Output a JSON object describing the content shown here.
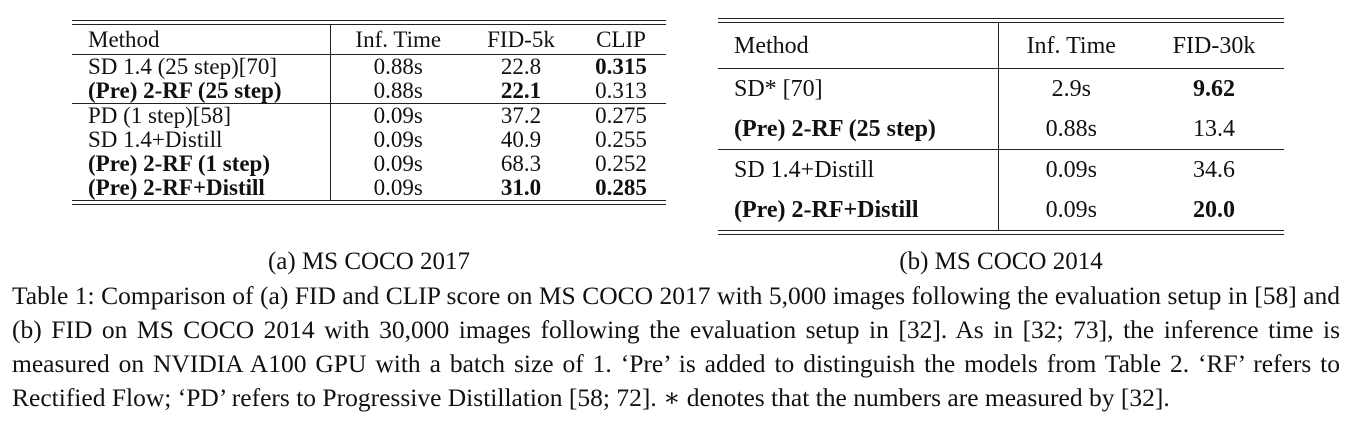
{
  "table_a": {
    "headers": [
      "Method",
      "Inf. Time",
      "FID-5k",
      "CLIP"
    ],
    "rows": [
      {
        "method": "SD 1.4 (25 step)[70]",
        "time": "0.88s",
        "fid": "22.8",
        "clip": "0.315"
      },
      {
        "method": "(Pre) 2-RF (25 step)",
        "time": "0.88s",
        "fid": "22.1",
        "clip": "0.313"
      },
      {
        "method": "PD (1 step)[58]",
        "time": "0.09s",
        "fid": "37.2",
        "clip": "0.275"
      },
      {
        "method": "SD 1.4+Distill",
        "time": "0.09s",
        "fid": "40.9",
        "clip": "0.255"
      },
      {
        "method": "(Pre) 2-RF (1 step)",
        "time": "0.09s",
        "fid": "68.3",
        "clip": "0.252"
      },
      {
        "method": "(Pre) 2-RF+Distill",
        "time": "0.09s",
        "fid": "31.0",
        "clip": "0.285"
      }
    ],
    "caption": "(a) MS COCO 2017"
  },
  "table_b": {
    "headers": [
      "Method",
      "Inf. Time",
      "FID-30k"
    ],
    "rows": [
      {
        "method": "SD* [70]",
        "time": "2.9s",
        "fid": "9.62"
      },
      {
        "method": "(Pre) 2-RF (25 step)",
        "time": "0.88s",
        "fid": "13.4"
      },
      {
        "method": "SD 1.4+Distill",
        "time": "0.09s",
        "fid": "34.6"
      },
      {
        "method": "(Pre) 2-RF+Distill",
        "time": "0.09s",
        "fid": "20.0"
      }
    ],
    "caption": "(b) MS COCO 2014"
  },
  "main_caption": "Table 1: Comparison of (a) FID and CLIP score on MS COCO 2017 with 5,000 images following the evaluation setup in [58] and (b) FID on MS COCO 2014 with 30,000 images following the evaluation setup in [32]. As in [32; 73], the inference time is measured on NVIDIA A100 GPU with a batch size of 1. ‘Pre’ is added to distinguish the models from Table 2. ‘RF’ refers to Rectified Flow; ‘PD’ refers to Progressive Distillation [58; 72]. ∗ denotes that the numbers are measured by [32]."
}
